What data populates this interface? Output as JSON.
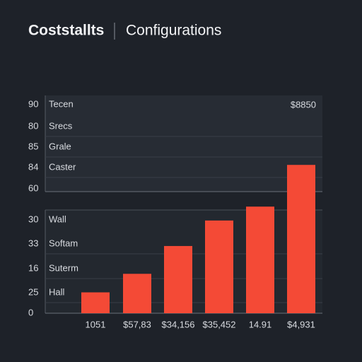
{
  "header": {
    "title": "Coststallts",
    "subtitle": "Configurations"
  },
  "chart_data": {
    "type": "bar",
    "corner_label": "$8850",
    "rows": [
      {
        "number": "90",
        "name": "Tecen"
      },
      {
        "number": "80",
        "name": "Srecs"
      },
      {
        "number": "85",
        "name": "Grale"
      },
      {
        "number": "84",
        "name": "Caster"
      },
      {
        "number": "60"
      },
      {
        "number": "30",
        "name": "Wall"
      },
      {
        "number": "33",
        "name": "Softam"
      },
      {
        "number": "16",
        "name": "Suterm"
      },
      {
        "number": "25",
        "name": "Hall"
      },
      {
        "number": "0"
      }
    ],
    "categories": [
      "1051",
      "$57,83",
      "$34,156",
      "$35,452",
      "14.91",
      "$4,931"
    ],
    "values": [
      9,
      17,
      29,
      40,
      46,
      64
    ],
    "color": "#f44a36",
    "ylim": [
      0,
      90
    ]
  }
}
